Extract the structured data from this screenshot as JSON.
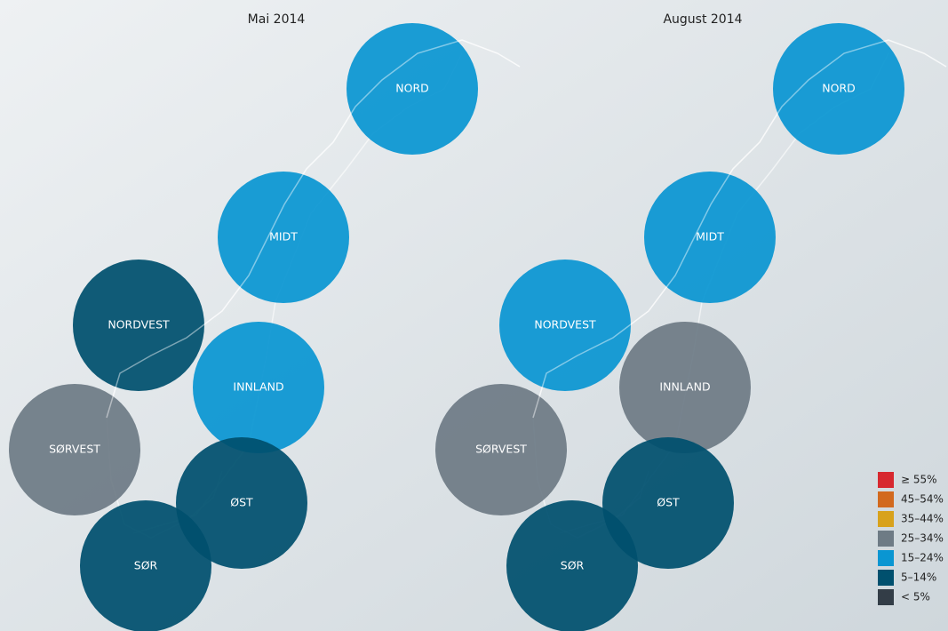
{
  "panels": [
    {
      "title": "Mai 2014",
      "regions": [
        {
          "name": "NORD",
          "color": "#0a96d2"
        },
        {
          "name": "MIDT",
          "color": "#0a96d2"
        },
        {
          "name": "NORDVEST",
          "color": "#00506e"
        },
        {
          "name": "INNLAND",
          "color": "#0a96d2"
        },
        {
          "name": "SØRVEST",
          "color": "#6e7b85"
        },
        {
          "name": "ØST",
          "color": "#00506e"
        },
        {
          "name": "SØR",
          "color": "#00506e"
        }
      ]
    },
    {
      "title": "August 2014",
      "regions": [
        {
          "name": "NORD",
          "color": "#0a96d2"
        },
        {
          "name": "MIDT",
          "color": "#0a96d2"
        },
        {
          "name": "NORDVEST",
          "color": "#0a96d2"
        },
        {
          "name": "INNLAND",
          "color": "#6e7b85"
        },
        {
          "name": "SØRVEST",
          "color": "#6e7b85"
        },
        {
          "name": "ØST",
          "color": "#00506e"
        },
        {
          "name": "SØR",
          "color": "#00506e"
        }
      ]
    }
  ],
  "legend": [
    {
      "label": "≥ 55%",
      "color": "#d7282f"
    },
    {
      "label": "45–54%",
      "color": "#d2691e"
    },
    {
      "label": "35–44%",
      "color": "#d8a21c"
    },
    {
      "label": "25–34%",
      "color": "#6e7b85"
    },
    {
      "label": "15–24%",
      "color": "#0a96d2"
    },
    {
      "label": "5–14%",
      "color": "#00506e"
    },
    {
      "label": "< 5%",
      "color": "#333d47"
    }
  ]
}
